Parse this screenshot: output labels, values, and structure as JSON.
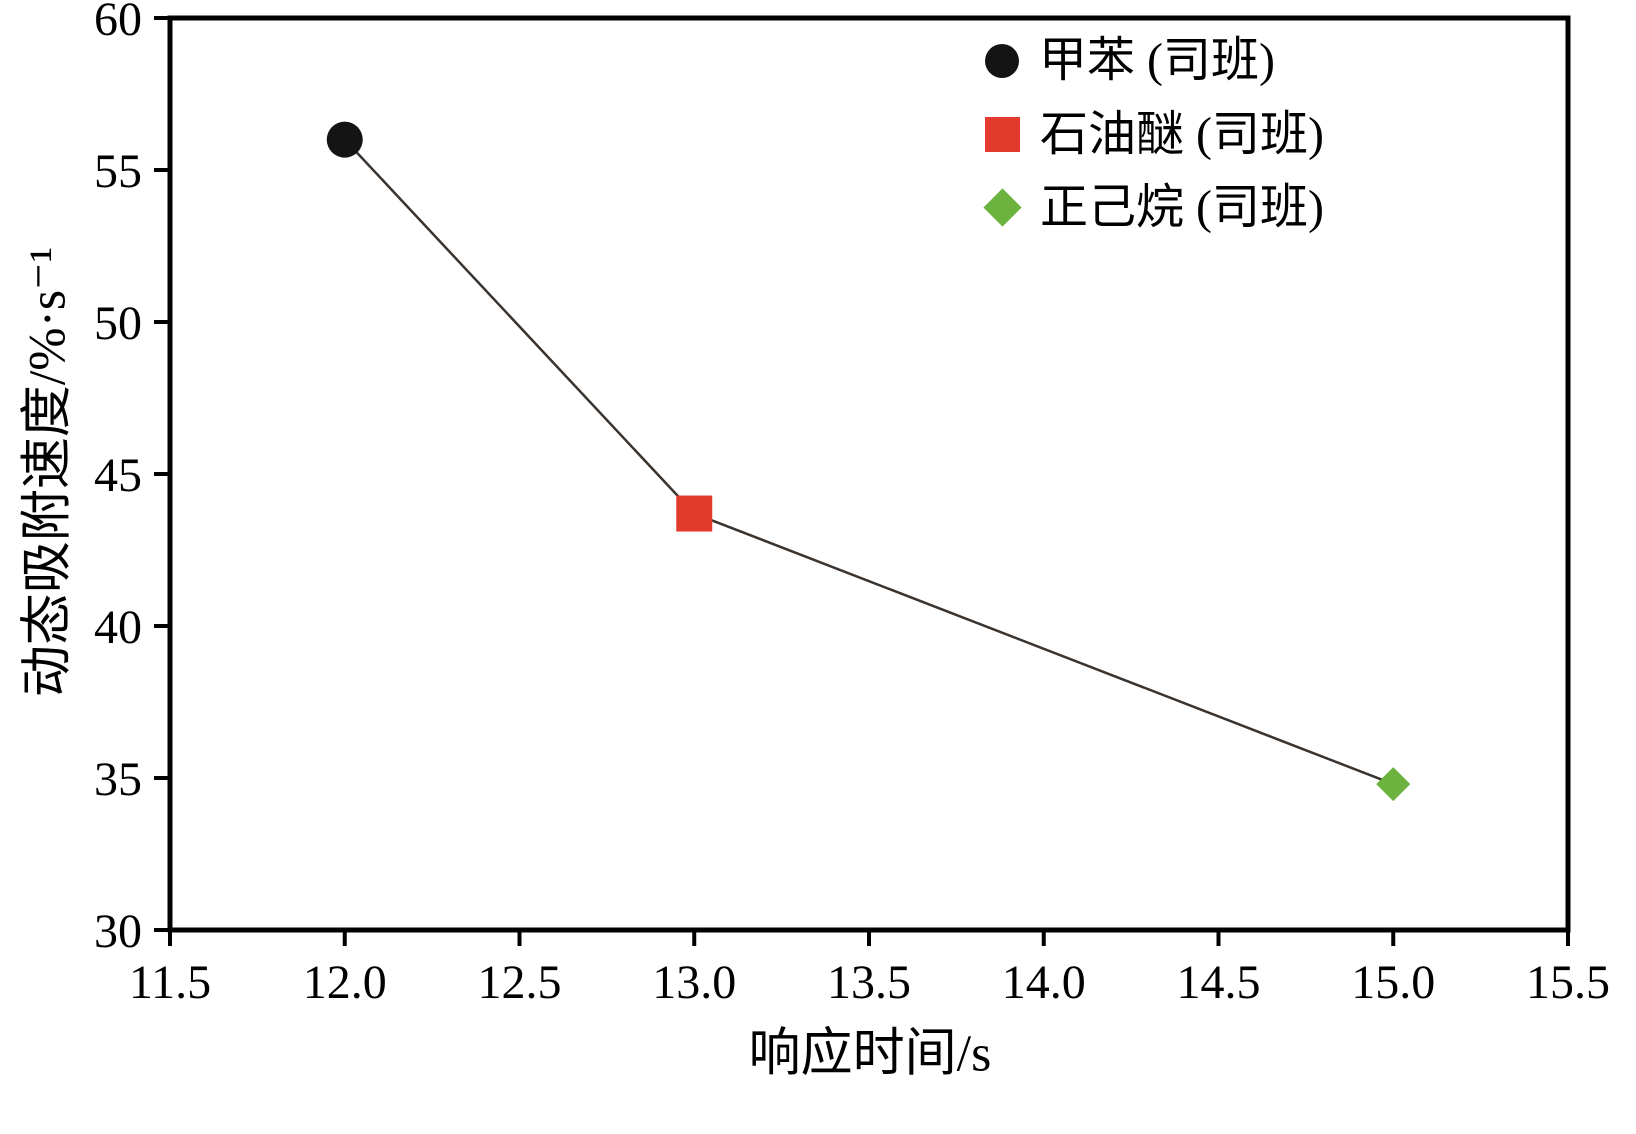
{
  "chart_data": {
    "type": "scatter",
    "title": "",
    "xlabel": "响应时间/s",
    "ylabel": "动态吸附速度/%·s⁻¹",
    "xlim": [
      11.5,
      15.5
    ],
    "ylim": [
      30,
      60
    ],
    "xtick_labels": [
      "11.5",
      "12.0",
      "12.5",
      "13.0",
      "13.5",
      "14.0",
      "14.5",
      "15.0",
      "15.5"
    ],
    "ytick_labels": [
      "30",
      "35",
      "40",
      "45",
      "50",
      "55",
      "60"
    ],
    "grid": false,
    "legend_position": "top-right-inside",
    "connected_line_color": "#3a332e",
    "axis_color": "#000000",
    "series": [
      {
        "name": "甲苯 (司班)",
        "marker": "circle",
        "color": "#141414",
        "x": 12.0,
        "y": 56.0
      },
      {
        "name": "石油醚 (司班)",
        "marker": "square",
        "color": "#e23b2e",
        "x": 13.0,
        "y": 43.7
      },
      {
        "name": "正己烷 (司班)",
        "marker": "diamond",
        "color": "#6cb23e",
        "x": 15.0,
        "y": 34.8
      }
    ]
  }
}
